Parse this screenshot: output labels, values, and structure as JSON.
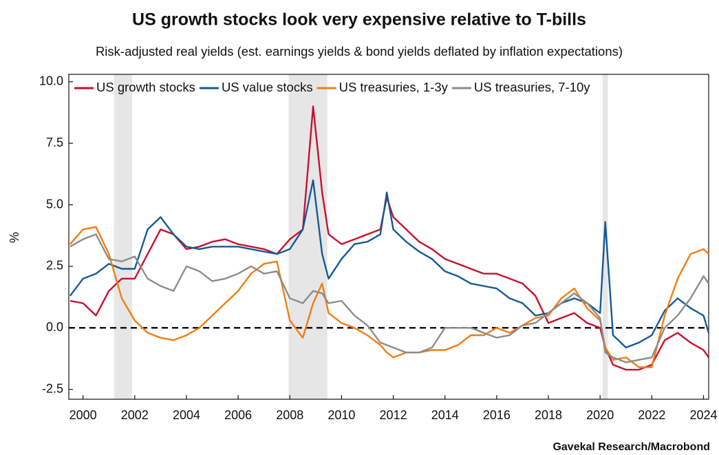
{
  "chart_data": {
    "type": "line",
    "title": "US growth stocks look very expensive relative to T-bills",
    "subtitle": "Risk-adjusted real yields (est. earnings yields & bond yields deflated by inflation expectations)",
    "y_label": "%",
    "source": "Gavekal Research/Macrobond",
    "xlim": [
      1999.45,
      2024.2
    ],
    "xticks": [
      2000,
      2002,
      2004,
      2006,
      2008,
      2010,
      2012,
      2014,
      2016,
      2018,
      2020,
      2022,
      2024
    ],
    "ylim": [
      -2.9,
      10.3
    ],
    "yticks": [
      {
        "value": 10,
        "label": "10.0"
      },
      {
        "value": 7.5,
        "label": "7.5"
      },
      {
        "value": 5,
        "label": "5.0"
      },
      {
        "value": 2.5,
        "label": "2.5"
      },
      {
        "value": 0,
        "label": "0.0"
      },
      {
        "value": -2.5,
        "label": "-2.5"
      }
    ],
    "reference_line": 0,
    "shaded_periods": [
      [
        2001.2,
        2001.9
      ],
      [
        2007.95,
        2009.45
      ],
      [
        2020.1,
        2020.3
      ]
    ],
    "shade_color": "#e6e6e6",
    "x": [
      1999.5,
      2000,
      2000.5,
      2001,
      2001.5,
      2002,
      2002.5,
      2003,
      2003.5,
      2004,
      2004.5,
      2005,
      2005.5,
      2006,
      2006.5,
      2007,
      2007.5,
      2008,
      2008.5,
      2008.9,
      2009.25,
      2009.5,
      2010,
      2010.5,
      2011,
      2011.5,
      2011.75,
      2012,
      2012.5,
      2013,
      2013.5,
      2014,
      2014.5,
      2015,
      2015.5,
      2016,
      2016.5,
      2017,
      2017.5,
      2018,
      2018.5,
      2019,
      2019.5,
      2020,
      2020.2,
      2020.5,
      2021,
      2021.5,
      2022,
      2022.5,
      2023,
      2023.5,
      2024,
      2024.2
    ],
    "series": [
      {
        "name": "US growth stocks",
        "color": "#c8102e",
        "values": [
          1.1,
          1.0,
          0.5,
          1.5,
          2.0,
          2.0,
          3.0,
          4.0,
          3.8,
          3.2,
          3.3,
          3.5,
          3.6,
          3.4,
          3.3,
          3.2,
          3.0,
          3.6,
          4.0,
          9.0,
          5.5,
          3.8,
          3.4,
          3.6,
          3.8,
          4.0,
          5.3,
          4.5,
          4.0,
          3.5,
          3.2,
          2.8,
          2.6,
          2.4,
          2.2,
          2.2,
          2.0,
          1.8,
          1.3,
          0.2,
          0.4,
          0.6,
          0.2,
          0.0,
          -0.8,
          -1.5,
          -1.7,
          -1.7,
          -1.5,
          -0.5,
          -0.2,
          -0.6,
          -0.9,
          -1.2
        ]
      },
      {
        "name": "US value stocks",
        "color": "#135a96",
        "values": [
          1.3,
          2.0,
          2.2,
          2.6,
          2.4,
          2.4,
          4.0,
          4.5,
          3.8,
          3.3,
          3.2,
          3.3,
          3.3,
          3.3,
          3.2,
          3.1,
          3.0,
          3.2,
          4.0,
          6.0,
          3.0,
          2.0,
          2.8,
          3.4,
          3.5,
          3.8,
          5.5,
          4.0,
          3.5,
          3.1,
          2.8,
          2.3,
          2.1,
          1.8,
          1.7,
          1.6,
          1.2,
          1.0,
          0.5,
          0.6,
          1.0,
          1.2,
          1.0,
          0.6,
          4.3,
          -0.3,
          -0.8,
          -0.6,
          -0.3,
          0.7,
          1.2,
          0.8,
          0.5,
          -0.2
        ]
      },
      {
        "name": "US treasuries, 1-3y",
        "color": "#f07d12",
        "values": [
          3.4,
          4.0,
          4.1,
          3.0,
          1.2,
          0.3,
          -0.2,
          -0.4,
          -0.5,
          -0.3,
          0.0,
          0.5,
          1.0,
          1.5,
          2.2,
          2.6,
          2.7,
          0.3,
          -0.4,
          1.0,
          1.8,
          0.6,
          0.2,
          0.0,
          -0.3,
          -0.7,
          -1.0,
          -1.2,
          -1.0,
          -1.0,
          -0.9,
          -0.9,
          -0.7,
          -0.3,
          -0.3,
          0.0,
          -0.2,
          0.1,
          0.4,
          0.5,
          1.2,
          1.6,
          0.8,
          0.3,
          -0.8,
          -1.3,
          -1.2,
          -1.6,
          -1.6,
          0.5,
          2.0,
          3.0,
          3.2,
          3.0
        ]
      },
      {
        "name": "US treasuries, 7-10y",
        "color": "#8c8c8c",
        "values": [
          3.3,
          3.6,
          3.8,
          2.8,
          2.7,
          2.9,
          2.0,
          1.7,
          1.5,
          2.5,
          2.3,
          1.9,
          2.0,
          2.2,
          2.5,
          2.2,
          2.3,
          1.2,
          1.0,
          1.5,
          1.4,
          1.0,
          1.1,
          0.5,
          0.1,
          -0.6,
          -0.7,
          -0.8,
          -1.0,
          -1.0,
          -0.8,
          0.0,
          0.0,
          0.0,
          -0.2,
          -0.4,
          -0.3,
          0.1,
          0.2,
          0.6,
          1.0,
          1.4,
          1.0,
          0.4,
          -1.0,
          -1.2,
          -1.4,
          -1.3,
          -1.2,
          0.0,
          0.5,
          1.2,
          2.1,
          1.8
        ]
      }
    ]
  }
}
